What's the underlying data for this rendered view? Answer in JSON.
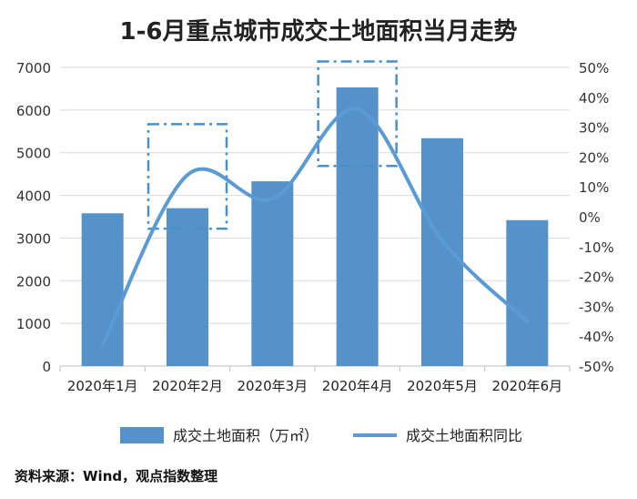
{
  "chart_data": {
    "type": "bar",
    "title": "1-6月重点城市成交土地面积当月走势",
    "categories": [
      "2020年1月",
      "2020年2月",
      "2020年3月",
      "2020年4月",
      "2020年5月",
      "2020年6月"
    ],
    "series": [
      {
        "name": "成交土地面积（万㎡）",
        "type": "bar",
        "axis": "left",
        "color": "#5592c9",
        "values": [
          3580,
          3700,
          4330,
          6530,
          5340,
          3420
        ]
      },
      {
        "name": "成交土地面积同比",
        "type": "line",
        "axis": "right",
        "color": "#5b9bd5",
        "values": [
          -43,
          14,
          6,
          36,
          -8,
          -35
        ]
      }
    ],
    "y_left": {
      "min": 0,
      "max": 7000,
      "ticks": [
        0,
        1000,
        2000,
        3000,
        4000,
        5000,
        6000,
        7000
      ]
    },
    "y_right": {
      "min": -50,
      "max": 50,
      "ticks": [
        "50%",
        "40%",
        "30%",
        "20%",
        "10%",
        "0%",
        "-10%",
        "-20%",
        "-30%",
        "-40%",
        "-50%"
      ]
    },
    "grid": true,
    "legend_position": "bottom",
    "annotations": [
      {
        "kind": "dash-dot box",
        "category": "2020年2月",
        "right_axis_range": [
          -4,
          31
        ]
      },
      {
        "kind": "dash-dot box",
        "category": "2020年4月",
        "right_axis_range": [
          17,
          52
        ]
      }
    ]
  },
  "source": "资料来源：Wind，观点指数整理"
}
